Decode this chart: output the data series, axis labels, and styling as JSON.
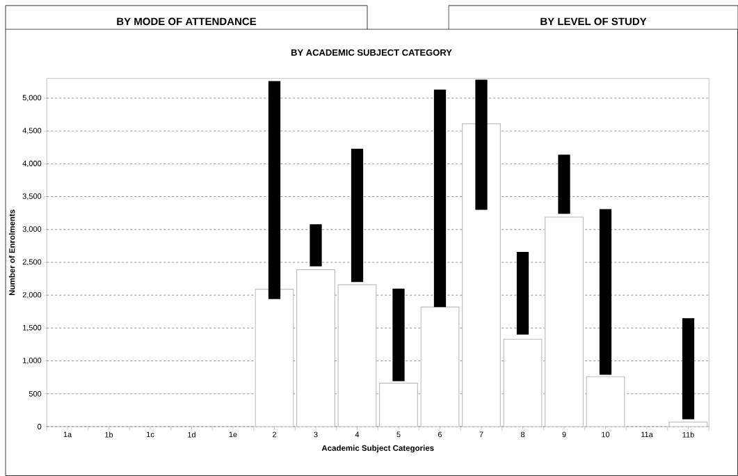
{
  "chart_data": {
    "type": "bar",
    "title": "BY ACADEMIC SUBJECT CATEGORY",
    "xlabel": "Academic Subject Categories",
    "ylabel": "Number of Enrolments",
    "annotations": [
      "BY MODE OF ATTENDANCE",
      "BY LEVEL OF STUDY"
    ],
    "categories": [
      "1a",
      "1b",
      "1c",
      "1d",
      "1e",
      "2",
      "3",
      "4",
      "5",
      "6",
      "7",
      "8",
      "9",
      "10",
      "11a",
      "11b"
    ],
    "series": [
      {
        "color": "#ffffff",
        "values": [
          null,
          null,
          null,
          null,
          null,
          2090,
          2390,
          2160,
          660,
          1820,
          4610,
          1330,
          3190,
          760,
          null,
          70
        ]
      },
      {
        "color": "#000000",
        "base": [
          null,
          null,
          null,
          null,
          null,
          1940,
          2440,
          2200,
          690,
          1820,
          3300,
          1400,
          3240,
          790,
          null,
          110
        ],
        "values": [
          null,
          null,
          null,
          null,
          null,
          3320,
          640,
          2030,
          1410,
          3310,
          1980,
          1260,
          900,
          2520,
          null,
          1540
        ]
      }
    ],
    "ylim": [
      0,
      5300
    ],
    "yticks": [
      0,
      500,
      {
        "value": 1000,
        "label": "1,000"
      },
      {
        "value": 1500,
        "label": "1,500"
      },
      {
        "value": 2000,
        "label": "2,000"
      },
      {
        "value": 2500,
        "label": "2,500"
      },
      {
        "value": 3000,
        "label": "3,000"
      },
      {
        "value": 3500,
        "label": "3,500"
      },
      {
        "value": 4000,
        "label": "4,000"
      },
      {
        "value": 4500,
        "label": "4,500"
      },
      {
        "value": 5000,
        "label": "5,000"
      }
    ],
    "grid": "y"
  }
}
